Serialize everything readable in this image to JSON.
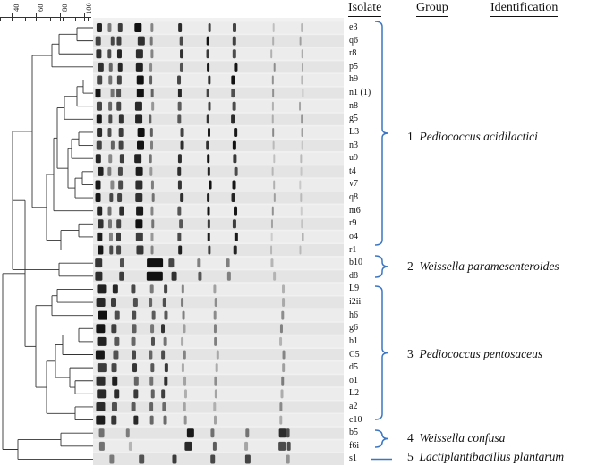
{
  "headers": {
    "isolate": "Isolate",
    "group": "Group",
    "identification": "Identification"
  },
  "scale": {
    "ticks": [
      "40",
      "60",
      "80",
      "100"
    ]
  },
  "isolates": [
    "e3",
    "q6",
    "r8",
    "p5",
    "h9",
    "n1 (1)",
    "n8",
    "g5",
    "L3",
    "n3",
    "u9",
    "t4",
    "v7",
    "q8",
    "m6",
    "r9",
    "o4",
    "r1",
    "b10",
    "d8",
    "L9",
    "i2ii",
    "h6",
    "g6",
    "b1",
    "C5",
    "d5",
    "o1",
    "L2",
    "a2",
    "c10",
    "b5",
    "f6i",
    "s1"
  ],
  "groups": [
    {
      "number": "1",
      "name": "Pediococcus acidilactici"
    },
    {
      "number": "2",
      "name": "Weissella paramesenteroides"
    },
    {
      "number": "3",
      "name": "Pediococcus pentosaceus"
    },
    {
      "number": "4",
      "name": "Weissella confusa"
    },
    {
      "number": "5",
      "name": "Lactiplantibacillus plantarum"
    }
  ],
  "colors": {
    "bracket": "#3b76c4",
    "tree": "#333333",
    "lane_bg": "#e6e6e6"
  }
}
